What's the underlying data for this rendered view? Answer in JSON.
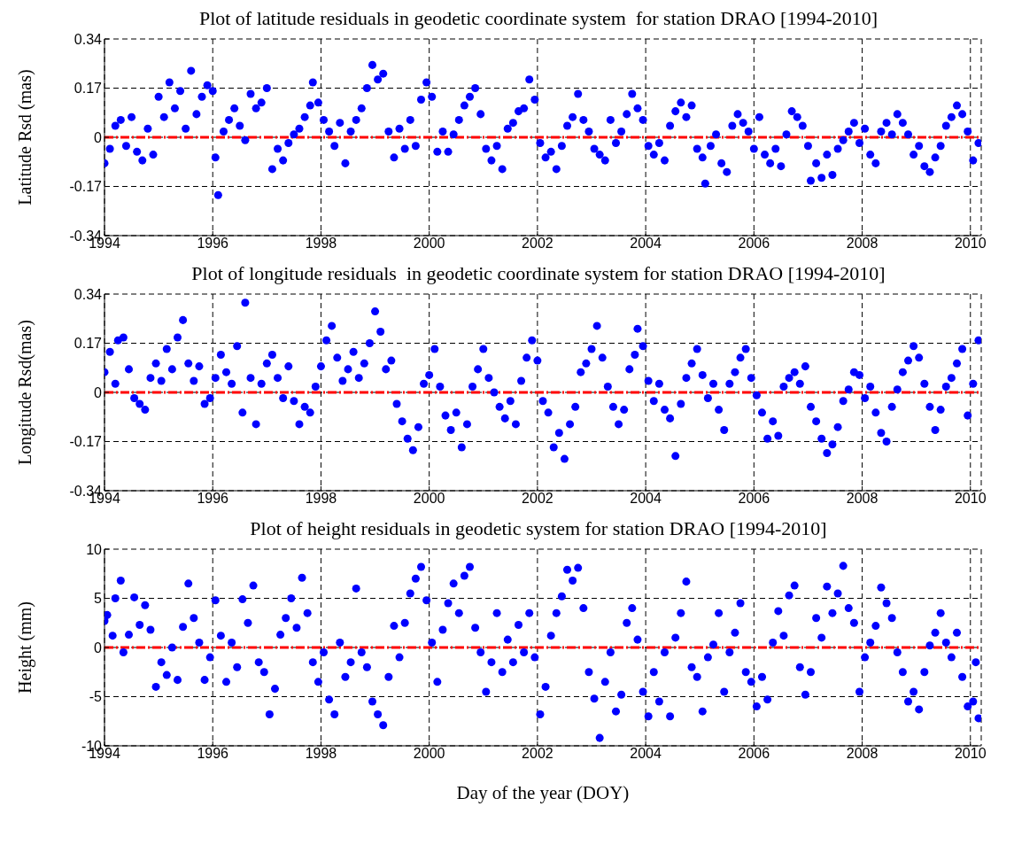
{
  "chart_data": [
    {
      "type": "scatter",
      "title": "Plot of latitude residuals in geodetic coordinate system  for station DRAO [1994-2010]",
      "ylabel": "Latitude Rsd (mas)",
      "color": "#0000ff",
      "marker": "circle",
      "grid": true,
      "xlim": [
        1994,
        2010.2
      ],
      "xticks": [
        1994,
        1996,
        1998,
        2000,
        2002,
        2004,
        2006,
        2008,
        2010
      ],
      "ylim": [
        -0.34,
        0.34
      ],
      "yticks": [
        -0.34,
        -0.17,
        0,
        0.17,
        0.34
      ],
      "ref_lines": [
        {
          "axis": "y",
          "value": 0,
          "color": "#ff0000",
          "line_style": "dashed"
        }
      ],
      "x": [
        1994.0,
        1994.1,
        1994.2,
        1994.3,
        1994.4,
        1994.5,
        1994.6,
        1994.7,
        1994.8,
        1994.9,
        1995.0,
        1995.1,
        1995.2,
        1995.3,
        1995.4,
        1995.5,
        1995.6,
        1995.7,
        1995.8,
        1995.9,
        1996.0,
        1996.05,
        1996.1,
        1996.2,
        1996.3,
        1996.4,
        1996.5,
        1996.6,
        1996.7,
        1996.8,
        1996.9,
        1997.0,
        1997.1,
        1997.2,
        1997.3,
        1997.4,
        1997.5,
        1997.6,
        1997.7,
        1997.8,
        1997.85,
        1997.95,
        1998.05,
        1998.15,
        1998.25,
        1998.35,
        1998.45,
        1998.55,
        1998.65,
        1998.75,
        1998.85,
        1998.95,
        1999.05,
        1999.15,
        1999.25,
        1999.35,
        1999.45,
        1999.55,
        1999.65,
        1999.75,
        1999.85,
        1999.95,
        2000.05,
        2000.15,
        2000.25,
        2000.35,
        2000.45,
        2000.55,
        2000.65,
        2000.75,
        2000.85,
        2000.95,
        2001.05,
        2001.15,
        2001.25,
        2001.35,
        2001.45,
        2001.55,
        2001.65,
        2001.75,
        2001.85,
        2001.95,
        2002.05,
        2002.15,
        2002.25,
        2002.35,
        2002.45,
        2002.55,
        2002.65,
        2002.75,
        2002.85,
        2002.95,
        2003.05,
        2003.15,
        2003.25,
        2003.35,
        2003.45,
        2003.55,
        2003.65,
        2003.75,
        2003.85,
        2003.95,
        2004.05,
        2004.15,
        2004.25,
        2004.35,
        2004.45,
        2004.55,
        2004.65,
        2004.75,
        2004.85,
        2004.95,
        2005.05,
        2005.1,
        2005.2,
        2005.3,
        2005.4,
        2005.5,
        2005.6,
        2005.7,
        2005.8,
        2005.9,
        2006.0,
        2006.1,
        2006.2,
        2006.3,
        2006.4,
        2006.5,
        2006.6,
        2006.7,
        2006.8,
        2006.9,
        2007.0,
        2007.05,
        2007.15,
        2007.25,
        2007.35,
        2007.45,
        2007.55,
        2007.65,
        2007.75,
        2007.85,
        2007.95,
        2008.05,
        2008.15,
        2008.25,
        2008.35,
        2008.45,
        2008.55,
        2008.65,
        2008.75,
        2008.85,
        2008.95,
        2009.05,
        2009.15,
        2009.25,
        2009.35,
        2009.45,
        2009.55,
        2009.65,
        2009.75,
        2009.85,
        2009.95,
        2010.05,
        2010.15
      ],
      "values": [
        -0.09,
        -0.04,
        0.04,
        0.06,
        -0.03,
        0.07,
        -0.05,
        -0.08,
        0.03,
        -0.06,
        0.14,
        0.07,
        0.19,
        0.1,
        0.16,
        0.03,
        0.23,
        0.08,
        0.14,
        0.18,
        0.16,
        -0.07,
        -0.2,
        0.02,
        0.06,
        0.1,
        0.04,
        -0.01,
        0.15,
        0.1,
        0.12,
        0.17,
        -0.11,
        -0.04,
        -0.08,
        -0.02,
        0.01,
        0.03,
        0.07,
        0.11,
        0.19,
        0.12,
        0.06,
        0.02,
        -0.03,
        0.05,
        -0.09,
        0.02,
        0.06,
        0.1,
        0.17,
        0.25,
        0.2,
        0.22,
        0.02,
        -0.07,
        0.03,
        -0.04,
        0.06,
        -0.03,
        0.13,
        0.19,
        0.14,
        -0.05,
        0.02,
        -0.05,
        0.01,
        0.06,
        0.11,
        0.14,
        0.17,
        0.08,
        -0.04,
        -0.08,
        -0.03,
        -0.11,
        0.03,
        0.05,
        0.09,
        0.1,
        0.2,
        0.13,
        -0.02,
        -0.07,
        -0.05,
        -0.11,
        -0.03,
        0.04,
        0.07,
        0.15,
        0.06,
        0.02,
        -0.04,
        -0.06,
        -0.08,
        0.06,
        -0.02,
        0.02,
        0.08,
        0.15,
        0.1,
        0.06,
        -0.03,
        -0.06,
        -0.02,
        -0.08,
        0.04,
        0.09,
        0.12,
        0.07,
        0.11,
        -0.04,
        -0.07,
        -0.16,
        -0.03,
        0.01,
        -0.09,
        -0.12,
        0.04,
        0.08,
        0.05,
        0.02,
        -0.04,
        0.07,
        -0.06,
        -0.09,
        -0.04,
        -0.1,
        0.01,
        0.09,
        0.07,
        0.04,
        -0.03,
        -0.15,
        -0.09,
        -0.14,
        -0.06,
        -0.13,
        -0.04,
        -0.01,
        0.02,
        0.05,
        -0.02,
        0.03,
        -0.06,
        -0.09,
        0.02,
        0.05,
        0.01,
        0.08,
        0.05,
        0.01,
        -0.06,
        -0.03,
        -0.1,
        -0.12,
        -0.07,
        -0.03,
        0.04,
        0.07,
        0.11,
        0.08,
        0.02,
        -0.08,
        -0.02
      ]
    },
    {
      "type": "scatter",
      "title": "Plot of longitude residuals  in geodetic coordinate system for station DRAO [1994-2010]",
      "ylabel": "Longitude Rsd(mas)",
      "color": "#0000ff",
      "marker": "circle",
      "grid": true,
      "xlim": [
        1994,
        2010.2
      ],
      "xticks": [
        1994,
        1996,
        1998,
        2000,
        2002,
        2004,
        2006,
        2008,
        2010
      ],
      "ylim": [
        -0.34,
        0.34
      ],
      "yticks": [
        -0.34,
        -0.17,
        0,
        0.17,
        0.34
      ],
      "ref_lines": [
        {
          "axis": "y",
          "value": 0,
          "color": "#ff0000",
          "line_style": "dashed"
        }
      ],
      "x": [
        1994.0,
        1994.1,
        1994.2,
        1994.25,
        1994.35,
        1994.45,
        1994.55,
        1994.65,
        1994.75,
        1994.85,
        1994.95,
        1995.05,
        1995.15,
        1995.25,
        1995.35,
        1995.45,
        1995.55,
        1995.65,
        1995.75,
        1995.85,
        1995.95,
        1996.05,
        1996.15,
        1996.25,
        1996.35,
        1996.45,
        1996.55,
        1996.6,
        1996.7,
        1996.8,
        1996.9,
        1997.0,
        1997.1,
        1997.2,
        1997.3,
        1997.4,
        1997.5,
        1997.6,
        1997.7,
        1997.8,
        1997.9,
        1998.0,
        1998.1,
        1998.2,
        1998.3,
        1998.4,
        1998.5,
        1998.6,
        1998.7,
        1998.8,
        1998.9,
        1999.0,
        1999.1,
        1999.2,
        1999.3,
        1999.4,
        1999.5,
        1999.6,
        1999.7,
        1999.8,
        1999.9,
        2000.0,
        2000.1,
        2000.2,
        2000.3,
        2000.4,
        2000.5,
        2000.6,
        2000.7,
        2000.8,
        2000.9,
        2001.0,
        2001.1,
        2001.2,
        2001.3,
        2001.4,
        2001.5,
        2001.6,
        2001.7,
        2001.8,
        2001.9,
        2002.0,
        2002.1,
        2002.2,
        2002.3,
        2002.4,
        2002.5,
        2002.6,
        2002.7,
        2002.8,
        2002.9,
        2003.0,
        2003.1,
        2003.2,
        2003.3,
        2003.4,
        2003.5,
        2003.6,
        2003.7,
        2003.8,
        2003.85,
        2003.95,
        2004.05,
        2004.15,
        2004.25,
        2004.35,
        2004.45,
        2004.55,
        2004.65,
        2004.75,
        2004.85,
        2004.95,
        2005.05,
        2005.15,
        2005.25,
        2005.35,
        2005.45,
        2005.55,
        2005.65,
        2005.75,
        2005.85,
        2005.95,
        2006.05,
        2006.15,
        2006.25,
        2006.35,
        2006.45,
        2006.55,
        2006.65,
        2006.75,
        2006.85,
        2006.95,
        2007.05,
        2007.15,
        2007.25,
        2007.35,
        2007.45,
        2007.55,
        2007.65,
        2007.75,
        2007.85,
        2007.95,
        2008.05,
        2008.15,
        2008.25,
        2008.35,
        2008.45,
        2008.55,
        2008.65,
        2008.75,
        2008.85,
        2008.95,
        2009.05,
        2009.15,
        2009.25,
        2009.35,
        2009.45,
        2009.55,
        2009.65,
        2009.75,
        2009.85,
        2009.95,
        2010.05,
        2010.15
      ],
      "values": [
        0.07,
        0.14,
        0.03,
        0.18,
        0.19,
        0.08,
        -0.02,
        -0.04,
        -0.06,
        0.05,
        0.1,
        0.04,
        0.15,
        0.08,
        0.19,
        0.25,
        0.1,
        0.04,
        0.09,
        -0.04,
        -0.02,
        0.05,
        0.13,
        0.07,
        0.03,
        0.16,
        -0.07,
        0.31,
        0.05,
        -0.11,
        0.03,
        0.1,
        0.13,
        0.05,
        -0.02,
        0.09,
        -0.03,
        -0.11,
        -0.05,
        -0.07,
        0.02,
        0.09,
        0.18,
        0.23,
        0.12,
        0.04,
        0.08,
        0.14,
        0.05,
        0.1,
        0.17,
        0.28,
        0.21,
        0.08,
        0.11,
        -0.04,
        -0.1,
        -0.16,
        -0.2,
        -0.12,
        0.03,
        0.06,
        0.15,
        0.02,
        -0.08,
        -0.13,
        -0.07,
        -0.19,
        -0.11,
        0.02,
        0.08,
        0.15,
        0.05,
        0.0,
        -0.05,
        -0.09,
        -0.03,
        -0.11,
        0.04,
        0.12,
        0.18,
        0.11,
        -0.03,
        -0.07,
        -0.19,
        -0.14,
        -0.23,
        -0.11,
        -0.05,
        0.07,
        0.1,
        0.15,
        0.23,
        0.12,
        0.02,
        -0.05,
        -0.11,
        -0.06,
        0.08,
        0.13,
        0.22,
        0.16,
        0.04,
        -0.03,
        0.03,
        -0.06,
        -0.09,
        -0.22,
        -0.04,
        0.05,
        0.1,
        0.15,
        0.06,
        -0.02,
        0.03,
        -0.06,
        -0.13,
        0.03,
        0.07,
        0.12,
        0.15,
        0.05,
        -0.01,
        -0.07,
        -0.16,
        -0.1,
        -0.15,
        0.02,
        0.05,
        0.07,
        0.03,
        0.09,
        -0.05,
        -0.1,
        -0.16,
        -0.21,
        -0.18,
        -0.12,
        -0.03,
        0.01,
        0.07,
        0.06,
        -0.02,
        0.02,
        -0.07,
        -0.14,
        -0.17,
        -0.05,
        0.01,
        0.07,
        0.11,
        0.16,
        0.12,
        0.03,
        -0.05,
        -0.13,
        -0.06,
        0.02,
        0.05,
        0.1,
        0.15,
        -0.08,
        0.03,
        0.18
      ]
    },
    {
      "type": "scatter",
      "title": "Plot of height residuals in geodetic system for station DRAO [1994-2010]",
      "ylabel": "Height (mm)",
      "xlabel": "Day of the year (DOY)",
      "color": "#0000ff",
      "marker": "circle",
      "grid": true,
      "xlim": [
        1994,
        2010.2
      ],
      "xticks": [
        1994,
        1996,
        1998,
        2000,
        2002,
        2004,
        2006,
        2008,
        2010
      ],
      "ylim": [
        -10,
        10
      ],
      "yticks": [
        -10,
        -5,
        0,
        5,
        10
      ],
      "ref_lines": [
        {
          "axis": "y",
          "value": 0,
          "color": "#ff0000",
          "line_style": "dashed"
        }
      ],
      "x": [
        1994.0,
        1994.05,
        1994.15,
        1994.2,
        1994.3,
        1994.35,
        1994.45,
        1994.55,
        1994.65,
        1994.75,
        1994.85,
        1994.95,
        1995.05,
        1995.15,
        1995.25,
        1995.35,
        1995.45,
        1995.55,
        1995.65,
        1995.75,
        1995.85,
        1995.95,
        1996.05,
        1996.15,
        1996.25,
        1996.35,
        1996.45,
        1996.55,
        1996.65,
        1996.75,
        1996.85,
        1996.95,
        1997.05,
        1997.15,
        1997.25,
        1997.35,
        1997.45,
        1997.55,
        1997.65,
        1997.75,
        1997.85,
        1997.95,
        1998.05,
        1998.15,
        1998.25,
        1998.35,
        1998.45,
        1998.55,
        1998.65,
        1998.75,
        1998.85,
        1998.95,
        1999.05,
        1999.15,
        1999.25,
        1999.35,
        1999.45,
        1999.55,
        1999.65,
        1999.75,
        1999.85,
        1999.95,
        2000.05,
        2000.15,
        2000.25,
        2000.35,
        2000.45,
        2000.55,
        2000.65,
        2000.75,
        2000.85,
        2000.95,
        2001.05,
        2001.15,
        2001.25,
        2001.35,
        2001.45,
        2001.55,
        2001.65,
        2001.75,
        2001.85,
        2001.95,
        2002.05,
        2002.15,
        2002.25,
        2002.35,
        2002.45,
        2002.55,
        2002.65,
        2002.75,
        2002.85,
        2002.95,
        2003.05,
        2003.15,
        2003.25,
        2003.35,
        2003.45,
        2003.55,
        2003.65,
        2003.75,
        2003.85,
        2003.95,
        2004.05,
        2004.15,
        2004.25,
        2004.35,
        2004.45,
        2004.55,
        2004.65,
        2004.75,
        2004.85,
        2004.95,
        2005.05,
        2005.15,
        2005.25,
        2005.35,
        2005.45,
        2005.55,
        2005.65,
        2005.75,
        2005.85,
        2005.95,
        2006.05,
        2006.15,
        2006.25,
        2006.35,
        2006.45,
        2006.55,
        2006.65,
        2006.75,
        2006.85,
        2006.95,
        2007.05,
        2007.15,
        2007.25,
        2007.35,
        2007.45,
        2007.55,
        2007.65,
        2007.75,
        2007.85,
        2007.95,
        2008.05,
        2008.15,
        2008.25,
        2008.35,
        2008.45,
        2008.55,
        2008.65,
        2008.75,
        2008.85,
        2008.95,
        2009.05,
        2009.15,
        2009.25,
        2009.35,
        2009.45,
        2009.55,
        2009.65,
        2009.75,
        2009.85,
        2009.95,
        2010.05,
        2010.1,
        2010.15
      ],
      "values": [
        2.7,
        3.3,
        1.2,
        5.0,
        6.8,
        -0.5,
        1.3,
        5.1,
        2.3,
        4.3,
        1.8,
        -4.0,
        -1.5,
        -2.8,
        0.0,
        -3.3,
        2.1,
        6.5,
        3.0,
        0.5,
        -3.3,
        -1.0,
        4.8,
        1.2,
        -3.5,
        0.5,
        -2.0,
        4.9,
        2.5,
        6.3,
        -1.5,
        -2.5,
        -6.8,
        -4.2,
        1.3,
        3.0,
        5.0,
        2.0,
        7.1,
        3.5,
        -1.5,
        -3.5,
        -0.5,
        -5.3,
        -6.8,
        0.5,
        -3.0,
        -1.5,
        6.0,
        -0.5,
        -2.0,
        -5.5,
        -6.8,
        -7.9,
        -3.0,
        2.2,
        -1.0,
        2.5,
        5.5,
        7.0,
        8.2,
        4.8,
        0.5,
        -3.5,
        1.8,
        4.5,
        6.5,
        3.5,
        7.3,
        8.2,
        2.0,
        -0.5,
        -4.5,
        -1.5,
        3.5,
        -2.5,
        0.8,
        -1.5,
        2.3,
        -0.5,
        3.5,
        -1.0,
        -6.8,
        -4.0,
        1.2,
        3.5,
        5.2,
        7.9,
        6.8,
        8.1,
        4.0,
        -2.5,
        -5.2,
        -9.2,
        -3.5,
        -0.5,
        -6.5,
        -4.8,
        2.5,
        4.0,
        0.8,
        -4.5,
        -7.0,
        -2.5,
        -5.5,
        -0.5,
        -7.0,
        1.0,
        3.5,
        6.7,
        -2.0,
        -3.0,
        -6.5,
        -1.0,
        0.3,
        3.5,
        -4.5,
        -0.5,
        1.5,
        4.5,
        -2.5,
        -3.5,
        -6.0,
        -3.0,
        -5.3,
        0.5,
        3.7,
        1.2,
        5.3,
        6.3,
        -2.0,
        -4.8,
        -2.5,
        3.0,
        1.0,
        6.2,
        3.5,
        5.5,
        8.3,
        4.0,
        2.5,
        -4.5,
        -1.0,
        0.5,
        2.2,
        6.1,
        4.5,
        3.0,
        -0.5,
        -2.5,
        -5.5,
        -4.5,
        -6.3,
        -2.5,
        0.2,
        1.5,
        3.5,
        0.5,
        -1.0,
        1.5,
        -3.0,
        -6.0,
        -5.5,
        -1.5,
        -7.2
      ]
    }
  ]
}
